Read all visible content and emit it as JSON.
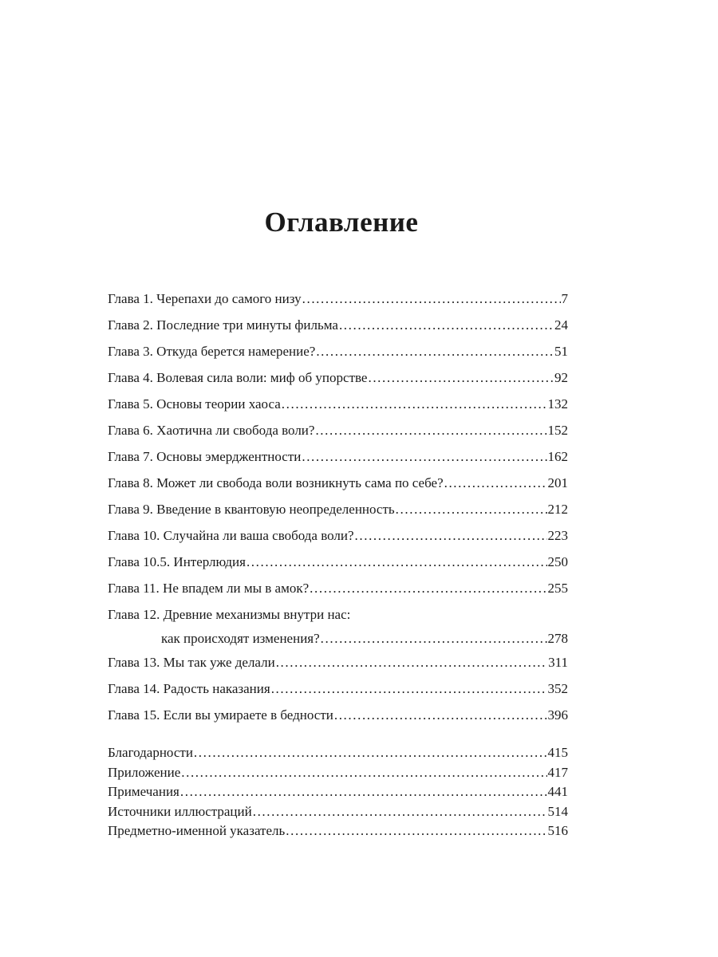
{
  "title": "Оглавление",
  "chapters": [
    {
      "label": "Глава 1. Черепахи до самого низу",
      "page": "7"
    },
    {
      "label": "Глава 2. Последние три минуты фильма",
      "page": "24"
    },
    {
      "label": "Глава 3. Откуда берется намерение?",
      "page": "51"
    },
    {
      "label": "Глава 4. Волевая сила воли: миф об упорстве",
      "page": "92"
    },
    {
      "label": "Глава 5. Основы теории хаоса",
      "page": "132"
    },
    {
      "label": "Глава 6. Хаотична ли свобода воли?",
      "page": "152"
    },
    {
      "label": "Глава 7. Основы эмерджентности",
      "page": "162"
    },
    {
      "label": "Глава 8. Может ли свобода воли возникнуть сама по себе?",
      "page": "201"
    },
    {
      "label": "Глава 9. Введение в квантовую неопределенность",
      "page": "212"
    },
    {
      "label": "Глава 10. Случайна ли ваша свобода воли?",
      "page": "223"
    },
    {
      "label": "Глава 10.5. Интерлюдия",
      "page": "250"
    },
    {
      "label": "Глава 11. Не впадем ли мы в амок?",
      "page": "255"
    },
    {
      "label": "Глава 12. Древние механизмы внутри нас:",
      "label2": "как происходят изменения?",
      "page": "278"
    },
    {
      "label": "Глава 13. Мы так уже делали",
      "page": "311"
    },
    {
      "label": "Глава 14. Радость наказания",
      "page": "352"
    },
    {
      "label": "Глава 15. Если вы умираете в бедности",
      "page": "396"
    }
  ],
  "back_matter": [
    {
      "label": "Благодарности",
      "page": "415"
    },
    {
      "label": "Приложение",
      "page": "417"
    },
    {
      "label": "Примечания",
      "page": "441"
    },
    {
      "label": "Источники иллюстраций",
      "page": "514"
    },
    {
      "label": "Предметно-именной указатель",
      "page": "516"
    }
  ]
}
